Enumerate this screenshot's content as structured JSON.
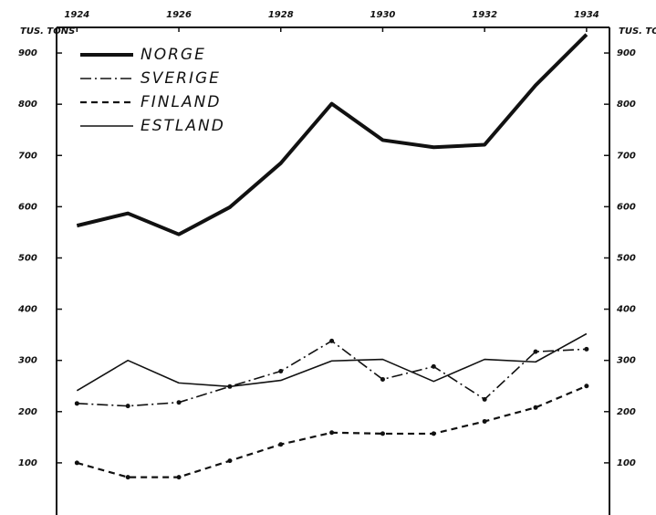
{
  "chart_data": {
    "type": "line",
    "y_label": "TUS. TONS",
    "x": [
      1924,
      1925,
      1926,
      1927,
      1928,
      1929,
      1930,
      1931,
      1932,
      1933,
      1934
    ],
    "xlim": [
      1923.6,
      1934.45
    ],
    "xticks": [
      1924,
      1926,
      1928,
      1930,
      1932,
      1934
    ],
    "ylim": [
      0,
      950
    ],
    "yticks": [
      100,
      200,
      300,
      400,
      500,
      600,
      700,
      800,
      900
    ],
    "legend": "upper left",
    "series": [
      {
        "name": "NORGE",
        "color": "#111111",
        "linestyle": "solid",
        "linewidth": 4,
        "marker": false,
        "values": [
          563,
          587,
          546,
          599,
          685,
          801,
          730,
          716,
          721,
          837,
          936
        ]
      },
      {
        "name": "SVERIGE",
        "color": "#111111",
        "linestyle": "dashdot",
        "linewidth": 1.6,
        "marker": true,
        "values": [
          216,
          211,
          218,
          249,
          279,
          338,
          263,
          288,
          224,
          317,
          322
        ]
      },
      {
        "name": "FINLAND",
        "color": "#111111",
        "linestyle": "dashed",
        "linewidth": 2.2,
        "marker": true,
        "values": [
          100,
          72,
          72,
          104,
          136,
          159,
          157,
          157,
          181,
          208,
          250
        ]
      },
      {
        "name": "ESTLAND",
        "color": "#111111",
        "linestyle": "solid",
        "linewidth": 1.6,
        "marker": false,
        "values": [
          241,
          300,
          256,
          249,
          261,
          299,
          302,
          259,
          302,
          297,
          352
        ]
      }
    ]
  }
}
